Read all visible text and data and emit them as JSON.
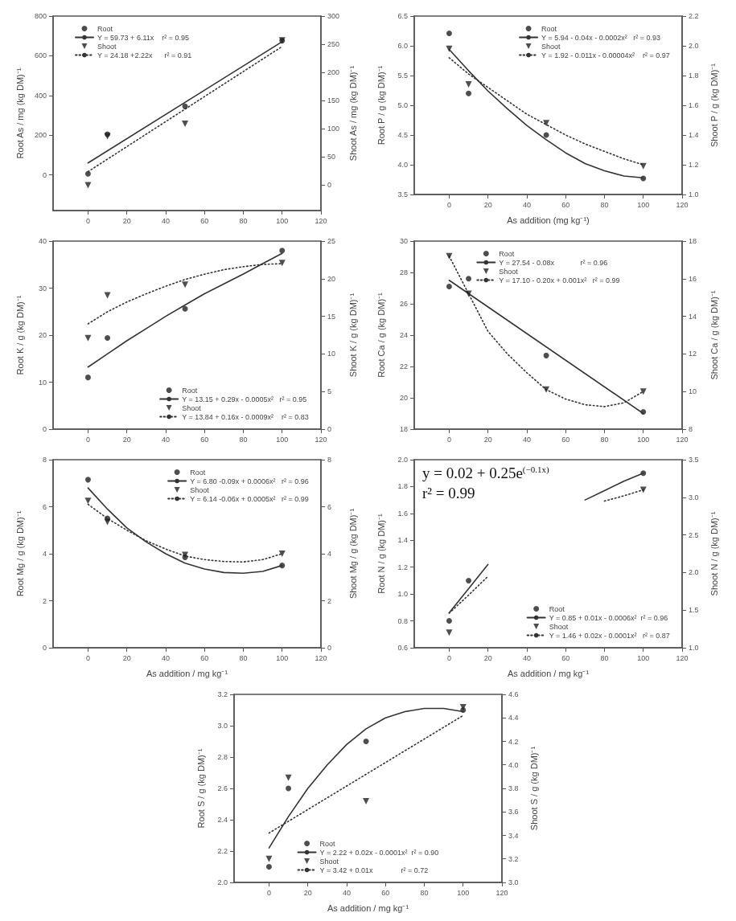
{
  "chart_data": [
    {
      "type": "scatter",
      "ylabel": "Root As / mg (kg DM)⁻¹",
      "y2label": "Shoot As / mg (kg DM)⁻¹",
      "xlim": [
        -18,
        120
      ],
      "xticks": [
        0,
        20,
        40,
        60,
        80,
        100,
        120
      ],
      "ylim": [
        -180,
        800
      ],
      "yticks": [
        0,
        200,
        400,
        600,
        800
      ],
      "y2lim": [
        -45,
        300
      ],
      "y2ticks": [
        0,
        50,
        100,
        150,
        200,
        250,
        300
      ],
      "grid": false,
      "legend": "top left",
      "series": [
        {
          "name": "Root",
          "type": "scatter",
          "marker": "circle",
          "color": "#222222",
          "x": [
            0,
            10,
            50,
            100
          ],
          "values": [
            5,
            205,
            345,
            676
          ]
        },
        {
          "name": "Y = 59.73 + 6.11x    r² = 0.95",
          "type": "line",
          "marker": "none",
          "line_style": "solid",
          "color": "#333333",
          "x": [
            0,
            100
          ],
          "values": [
            60,
            671
          ]
        },
        {
          "name": "Shoot",
          "type": "scatter",
          "axis": "y2",
          "marker": "triangle",
          "color": "#222222",
          "x": [
            0,
            10,
            50,
            100
          ],
          "values": [
            0,
            87,
            109,
            257
          ]
        },
        {
          "name": "Y = 24.18 +2.22x      r² = 0.91",
          "type": "line",
          "axis": "y2",
          "marker": "none",
          "line_style": "dotted",
          "color": "#333333",
          "x": [
            0,
            100
          ],
          "values": [
            24,
            246
          ]
        }
      ]
    },
    {
      "type": "scatter",
      "xlabel": "As addition (mg kg⁻¹)",
      "ylabel": "Root P / g (kg DM)⁻¹",
      "y2label": "Shoot P / g (kg DM)⁻¹",
      "xlim": [
        -18,
        120
      ],
      "xticks": [
        0,
        20,
        40,
        60,
        80,
        100,
        120
      ],
      "ylim": [
        3.5,
        6.5
      ],
      "yticks": [
        3.5,
        {
          "value": 4,
          "label": "4.0"
        },
        4.5,
        {
          "value": 5,
          "label": "5.0"
        },
        5.5,
        {
          "value": 6,
          "label": "6.0"
        },
        6.5
      ],
      "y2lim": [
        1,
        2.2
      ],
      "y2ticks": [
        {
          "value": 1,
          "label": "1.0"
        },
        1.2,
        1.4,
        1.6,
        1.8,
        {
          "value": 2,
          "label": "2.0"
        },
        2.2
      ],
      "grid": false,
      "legend": "top right",
      "series": [
        {
          "name": "Root",
          "type": "scatter",
          "marker": "circle",
          "color": "#222222",
          "x": [
            0,
            10,
            50,
            100
          ],
          "values": [
            6.21,
            5.2,
            4.5,
            3.77
          ]
        },
        {
          "name": "Y = 5.94 - 0.04x - 0.0002x²   r² = 0.93",
          "type": "line",
          "marker": "none",
          "line_style": "solid",
          "color": "#333333",
          "x": [
            0,
            10,
            20,
            30,
            40,
            50,
            60,
            70,
            80,
            90,
            100
          ],
          "values": [
            5.94,
            5.58,
            5.24,
            4.94,
            4.66,
            4.42,
            4.2,
            4.02,
            3.9,
            3.81,
            3.78
          ]
        },
        {
          "name": "Shoot",
          "type": "scatter",
          "axis": "y2",
          "marker": "triangle",
          "color": "#222222",
          "x": [
            0,
            10,
            50,
            100
          ],
          "values": [
            1.98,
            1.74,
            1.48,
            1.19
          ]
        },
        {
          "name": "Y = 1.92 - 0.011x - 0.00004x²    r² = 0.97",
          "type": "line",
          "axis": "y2",
          "marker": "none",
          "line_style": "dotted",
          "color": "#333333",
          "x": [
            0,
            10,
            20,
            30,
            40,
            50,
            60,
            70,
            80,
            90,
            100
          ],
          "values": [
            1.92,
            1.81,
            1.72,
            1.63,
            1.54,
            1.47,
            1.4,
            1.34,
            1.29,
            1.24,
            1.2
          ]
        }
      ]
    },
    {
      "type": "scatter",
      "ylabel": "Root K / g (kg DM)⁻¹",
      "y2label": "Shoot K / g (kg DM)⁻¹",
      "xlim": [
        -18,
        120
      ],
      "xticks": [
        0,
        20,
        40,
        60,
        80,
        100,
        120
      ],
      "ylim": [
        0,
        40
      ],
      "yticks": [
        0,
        10,
        20,
        30,
        40
      ],
      "y2lim": [
        0,
        25
      ],
      "y2ticks": [
        0,
        5,
        10,
        15,
        20,
        25
      ],
      "grid": false,
      "legend": "bottom right",
      "series": [
        {
          "name": "Root",
          "type": "scatter",
          "marker": "circle",
          "color": "#222222",
          "x": [
            0,
            10,
            50,
            100
          ],
          "values": [
            11,
            19.4,
            25.6,
            38
          ]
        },
        {
          "name": "Y = 13.15 + 0.29x - 0.0005x²   r² = 0.95",
          "type": "line",
          "marker": "none",
          "line_style": "solid",
          "color": "#333333",
          "x": [
            0,
            10,
            20,
            30,
            40,
            50,
            60,
            70,
            80,
            90,
            100
          ],
          "values": [
            13.2,
            16,
            18.8,
            21.4,
            24,
            26.4,
            28.8,
            30.9,
            33,
            35.2,
            37.4
          ]
        },
        {
          "name": "Shoot",
          "type": "scatter",
          "axis": "y2",
          "marker": "triangle",
          "color": "#222222",
          "x": [
            0,
            10,
            50,
            100
          ],
          "values": [
            12.1,
            17.8,
            19.2,
            22.1
          ]
        },
        {
          "name": "Y = 13.84 + 0.16x - 0.0009x²    r² = 0.83",
          "type": "line",
          "axis": "y2",
          "marker": "none",
          "line_style": "dotted",
          "color": "#333333",
          "x": [
            0,
            10,
            20,
            30,
            40,
            50,
            60,
            70,
            80,
            90,
            100
          ],
          "values": [
            14,
            15.6,
            16.9,
            18,
            19,
            19.9,
            20.6,
            21.2,
            21.6,
            21.9,
            22
          ]
        }
      ]
    },
    {
      "type": "scatter",
      "ylabel": "Root Ca / g (kg DM)⁻¹",
      "y2label": "Shoot Ca / g (kg DM)⁻¹",
      "xlim": [
        -18,
        120
      ],
      "xticks": [
        0,
        20,
        40,
        60,
        80,
        100,
        120
      ],
      "ylim": [
        18,
        30
      ],
      "yticks": [
        18,
        20,
        22,
        24,
        26,
        28,
        30
      ],
      "y2lim": [
        8,
        18
      ],
      "y2ticks": [
        8,
        10,
        12,
        14,
        16,
        18
      ],
      "grid": false,
      "legend": "top",
      "series": [
        {
          "name": "Root",
          "type": "scatter",
          "marker": "circle",
          "color": "#222222",
          "x": [
            0,
            10,
            50,
            100
          ],
          "values": [
            27.1,
            27.6,
            22.7,
            19.1
          ]
        },
        {
          "name": "Y = 27.54 - 0.08x             r² = 0.96",
          "type": "line",
          "marker": "none",
          "line_style": "solid",
          "color": "#333333",
          "x": [
            0,
            100
          ],
          "values": [
            27.5,
            19
          ]
        },
        {
          "name": "Shoot",
          "type": "scatter",
          "axis": "y2",
          "marker": "triangle",
          "color": "#222222",
          "x": [
            0,
            10,
            50,
            100
          ],
          "values": [
            17.2,
            15.2,
            10.1,
            10
          ]
        },
        {
          "name": "Y = 17.10 - 0.20x + 0.001x²   r² = 0.99",
          "type": "line",
          "axis": "y2",
          "marker": "none",
          "line_style": "dotted",
          "color": "#333333",
          "x": [
            0,
            10,
            20,
            30,
            40,
            50,
            60,
            70,
            80,
            90,
            100
          ],
          "values": [
            17.2,
            15.2,
            13.2,
            12,
            11,
            10.1,
            9.6,
            9.3,
            9.2,
            9.4,
            10
          ]
        }
      ]
    },
    {
      "type": "scatter",
      "xlabel": "As addition / mg kg⁻¹",
      "ylabel": "Root Mg / g (kg DM)⁻¹",
      "y2label": "Shoot Mg / g (kg DM)⁻¹",
      "xlim": [
        -18,
        120
      ],
      "xticks": [
        0,
        20,
        40,
        60,
        80,
        100,
        120
      ],
      "ylim": [
        0,
        8
      ],
      "yticks": [
        0,
        2,
        4,
        6,
        8
      ],
      "y2lim": [
        0,
        8
      ],
      "y2ticks": [
        0,
        2,
        4,
        6,
        8
      ],
      "grid": false,
      "legend": "top right",
      "series": [
        {
          "name": "Root",
          "type": "scatter",
          "marker": "circle",
          "color": "#222222",
          "x": [
            0,
            10,
            50,
            100
          ],
          "values": [
            7.15,
            5.5,
            3.85,
            3.5
          ]
        },
        {
          "name": "Y = 6.80 -0.09x + 0.0006x²   r² = 0.96",
          "type": "line",
          "marker": "none",
          "line_style": "solid",
          "color": "#333333",
          "x": [
            0,
            10,
            20,
            30,
            40,
            50,
            60,
            70,
            80,
            90,
            100
          ],
          "values": [
            6.8,
            5.9,
            5.1,
            4.5,
            4,
            3.6,
            3.35,
            3.2,
            3.17,
            3.25,
            3.5
          ]
        },
        {
          "name": "Shoot",
          "type": "scatter",
          "axis": "y2",
          "marker": "triangle",
          "color": "#222222",
          "x": [
            0,
            10,
            50,
            100
          ],
          "values": [
            6.25,
            5.35,
            3.95,
            4
          ]
        },
        {
          "name": "Y = 6.14 -0.06x + 0.0005x²   r² = 0.99",
          "type": "line",
          "axis": "y2",
          "marker": "none",
          "line_style": "dotted",
          "color": "#333333",
          "x": [
            0,
            10,
            20,
            30,
            40,
            50,
            60,
            70,
            80,
            90,
            100
          ],
          "values": [
            6.1,
            5.5,
            5,
            4.55,
            4.2,
            3.9,
            3.75,
            3.67,
            3.65,
            3.75,
            4
          ]
        }
      ]
    },
    {
      "type": "scatter",
      "xlabel": "As addition / mg kg⁻¹",
      "ylabel": "Root N / g (kg DM)⁻¹",
      "y2label": "Shoot N / g (kg DM)⁻¹",
      "xlim": [
        -18,
        120
      ],
      "xticks": [
        0,
        20,
        40,
        60,
        80,
        100,
        120
      ],
      "ylim": [
        0.6,
        2
      ],
      "yticks": [
        0.6,
        0.8,
        {
          "value": 1,
          "label": "1.0"
        },
        1.2,
        1.4,
        1.6,
        1.8,
        {
          "value": 2,
          "label": "2.0"
        }
      ],
      "y2lim": [
        1,
        3.5
      ],
      "y2ticks": [
        {
          "value": 1,
          "label": "1.0"
        },
        1.5,
        {
          "value": 2,
          "label": "2.0"
        },
        2.5,
        {
          "value": 3,
          "label": "3.0"
        },
        3.5
      ],
      "grid": false,
      "legend": "bottom right",
      "annotations": [
        "y = 0.02 + 0.25e$^{(−0.1x)}$",
        "r² = 0.99"
      ],
      "series": [
        {
          "name": "Root",
          "type": "scatter",
          "marker": "circle",
          "color": "#222222",
          "x": [
            0,
            10,
            50,
            100
          ],
          "values": [
            0.8,
            1.1,
            null,
            1.9
          ]
        },
        {
          "name": "Y = 0.85 + 0.01x - 0.0006x²  r² = 0.96",
          "type": "line",
          "marker": "none",
          "line_style": "solid",
          "color": "#333333",
          "x": [
            0,
            10,
            20,
            30,
            40,
            50,
            60,
            70,
            80,
            90,
            100
          ],
          "values": [
            0.86,
            1.04,
            1.22,
            null,
            null,
            null,
            null,
            1.7,
            1.77,
            1.84,
            1.9
          ]
        },
        {
          "name": "Shoot",
          "type": "scatter",
          "axis": "y2",
          "marker": "triangle",
          "color": "#222222",
          "x": [
            0,
            10,
            50,
            100
          ],
          "values": [
            1.2,
            null,
            null,
            3.1
          ]
        },
        {
          "name": "Y = 1.46 + 0.02x - 0.0001x²   r² = 0.87",
          "type": "line",
          "axis": "y2",
          "marker": "none",
          "line_style": "dotted",
          "color": "#333333",
          "x": [
            0,
            10,
            20,
            30,
            40,
            50,
            60,
            70,
            80,
            90,
            100
          ],
          "values": [
            1.46,
            1.7,
            1.95,
            null,
            null,
            null,
            null,
            null,
            2.95,
            3.02,
            3.1
          ]
        }
      ]
    },
    {
      "type": "scatter",
      "xlabel": "As addition / mg kg⁻¹",
      "ylabel": "Root S / g (kg DM)⁻¹",
      "y2label": "Shoot S / g (kg DM)⁻¹",
      "xlim": [
        -18,
        120
      ],
      "xticks": [
        0,
        20,
        40,
        60,
        80,
        100,
        120
      ],
      "ylim": [
        2,
        3.2
      ],
      "yticks": [
        {
          "value": 2,
          "label": "2.0"
        },
        2.2,
        2.4,
        2.6,
        2.8,
        {
          "value": 3,
          "label": "3.0"
        },
        3.2
      ],
      "y2lim": [
        3,
        4.6
      ],
      "y2ticks": [
        {
          "value": 3,
          "label": "3.0"
        },
        3.2,
        3.4,
        3.6,
        3.8,
        {
          "value": 4,
          "label": "4.0"
        },
        4.2,
        4.4,
        4.6
      ],
      "grid": false,
      "legend": "bottom",
      "series": [
        {
          "name": "Root",
          "type": "scatter",
          "marker": "circle",
          "color": "#222222",
          "x": [
            0,
            10,
            50,
            100
          ],
          "values": [
            2.1,
            2.6,
            2.9,
            3.1
          ]
        },
        {
          "name": "Y = 2.22 + 0.02x - 0.0001x²  r² = 0.90",
          "type": "line",
          "marker": "none",
          "line_style": "solid",
          "color": "#333333",
          "x": [
            0,
            10,
            20,
            30,
            40,
            50,
            60,
            70,
            80,
            90,
            100
          ],
          "values": [
            2.22,
            2.42,
            2.6,
            2.75,
            2.88,
            2.98,
            3.05,
            3.09,
            3.11,
            3.11,
            3.09
          ]
        },
        {
          "name": "Shoot",
          "type": "scatter",
          "axis": "y2",
          "marker": "triangle",
          "color": "#222222",
          "x": [
            0,
            10,
            50,
            100
          ],
          "values": [
            3.2,
            3.89,
            3.69,
            4.49
          ]
        },
        {
          "name": "Y = 3.42 + 0.01x              r² = 0.72",
          "type": "line",
          "axis": "y2",
          "marker": "none",
          "line_style": "dotted",
          "color": "#333333",
          "x": [
            0,
            100
          ],
          "values": [
            3.42,
            4.42
          ]
        }
      ]
    }
  ]
}
